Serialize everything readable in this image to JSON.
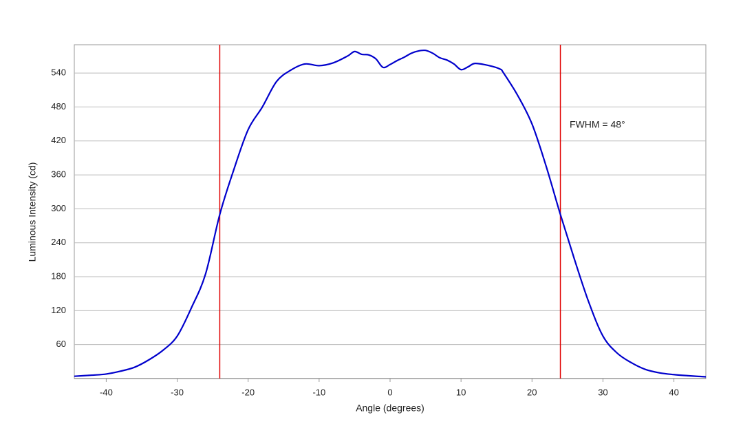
{
  "chart_data": {
    "type": "line",
    "xlabel": "Angle (degrees)",
    "ylabel": "Luminous Intensity (cd)",
    "annotation": "FWHM = 48°",
    "x": [
      -44.5,
      -42,
      -40,
      -38,
      -36,
      -34,
      -32,
      -30,
      -28,
      -26,
      -24,
      -22,
      -20,
      -18,
      -16,
      -14,
      -12,
      -10,
      -8,
      -6,
      -5,
      -4,
      -3,
      -2,
      -1,
      0,
      1,
      2,
      3,
      4,
      5,
      6,
      7,
      8,
      9,
      10,
      11,
      12,
      14,
      15.5,
      16,
      18,
      20,
      22,
      24,
      26,
      28,
      30,
      32,
      34,
      36,
      38,
      40,
      42,
      44.5
    ],
    "values": [
      4,
      6,
      8,
      13,
      20,
      33,
      50,
      75,
      125,
      185,
      290,
      370,
      440,
      480,
      525,
      545,
      556,
      553,
      558,
      570,
      578,
      573,
      572,
      565,
      550,
      555,
      562,
      568,
      575,
      579,
      580,
      575,
      567,
      563,
      556,
      546,
      551,
      557,
      553,
      547,
      540,
      500,
      450,
      375,
      290,
      210,
      135,
      75,
      45,
      28,
      16,
      10,
      7,
      5,
      3
    ],
    "color": "#0000cc",
    "vlines": [
      -24,
      24
    ],
    "vline_color": "#e00000",
    "xlim": [
      -44.5,
      44.5
    ],
    "ylim": [
      0,
      590
    ],
    "xticks": [
      -40,
      -30,
      -20,
      -10,
      0,
      10,
      20,
      30,
      40
    ],
    "yticks": [
      60,
      120,
      180,
      240,
      300,
      360,
      420,
      480,
      540
    ],
    "grid": true
  }
}
